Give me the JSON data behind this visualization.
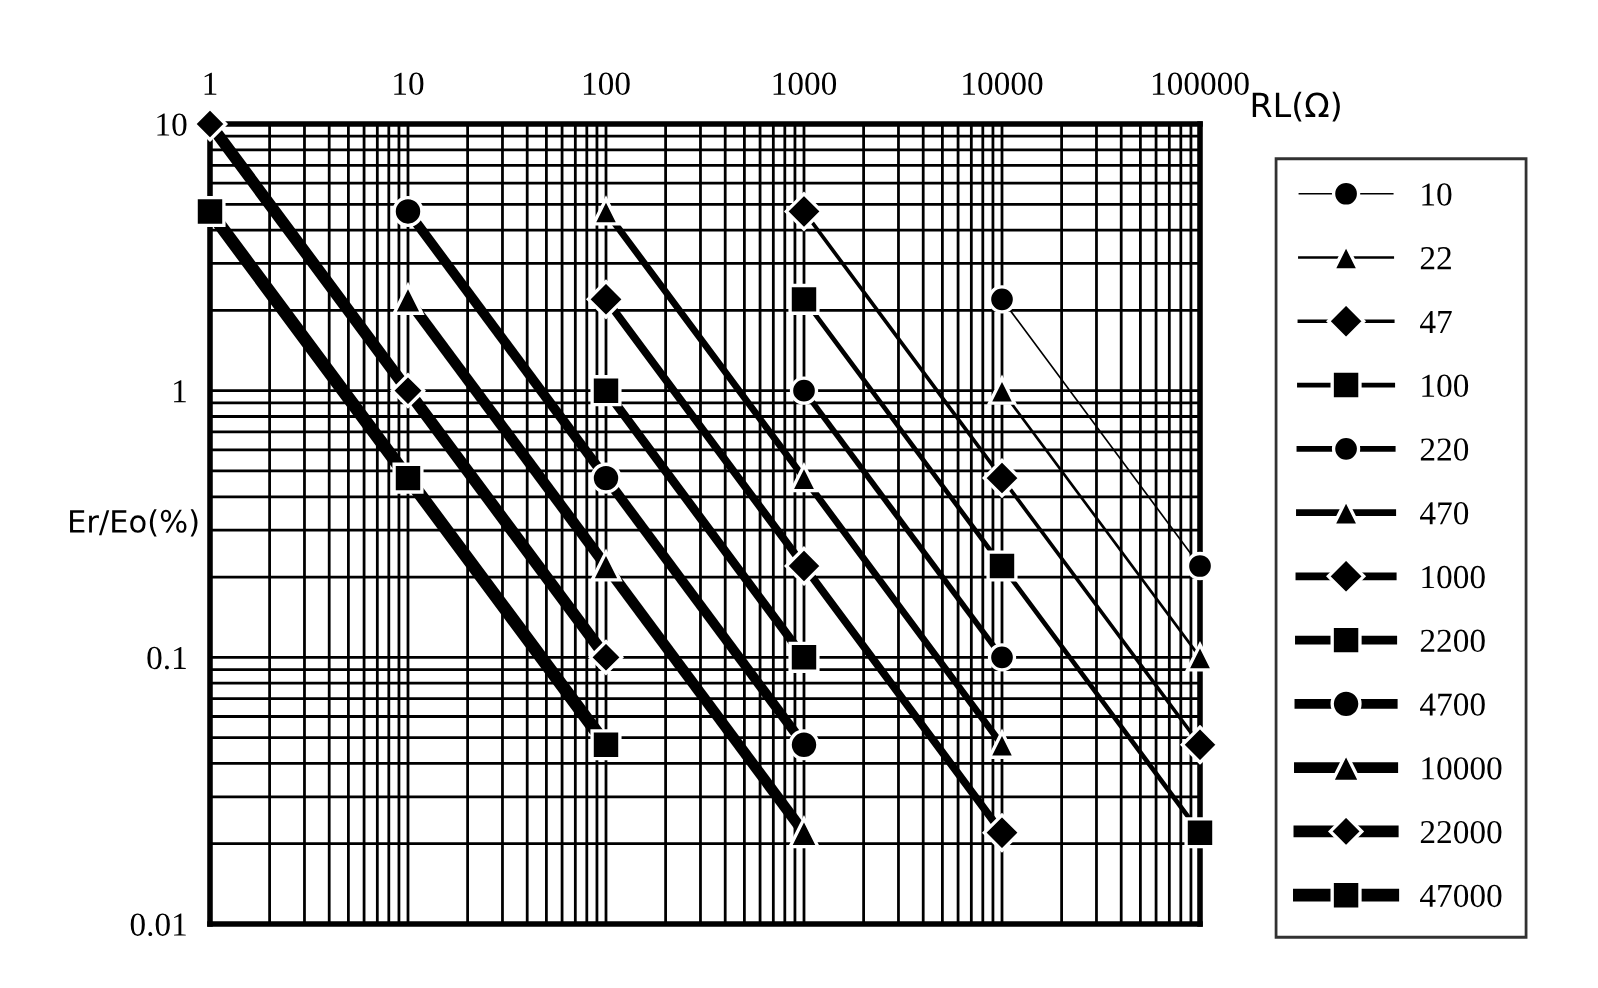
{
  "chart_data": {
    "type": "line",
    "xlabel": "RL(Ω)",
    "ylabel": "Er/Eo(%)",
    "log": "xy",
    "xlim": [
      1,
      100000
    ],
    "xticks": [
      1,
      10,
      100,
      1000,
      10000,
      100000
    ],
    "ylim": [
      0.01,
      10
    ],
    "yticks": [
      0.01,
      0.1,
      1,
      10
    ],
    "grid": true,
    "legend": "right",
    "series": [
      {
        "name": "10",
        "color": "#000000",
        "marker": "circle",
        "x": [
          10000,
          100000
        ],
        "values": [
          2.2,
          0.22
        ]
      },
      {
        "name": "22",
        "color": "#000000",
        "marker": "triangle",
        "x": [
          10000,
          100000
        ],
        "values": [
          1.0,
          0.1
        ]
      },
      {
        "name": "47",
        "color": "#000000",
        "marker": "diamond",
        "x": [
          1000,
          10000,
          100000
        ],
        "values": [
          4.7,
          0.47,
          0.047
        ]
      },
      {
        "name": "100",
        "color": "#000000",
        "marker": "square",
        "x": [
          1000,
          10000,
          100000
        ],
        "values": [
          2.2,
          0.22,
          0.022
        ]
      },
      {
        "name": "220",
        "color": "#000000",
        "marker": "circle",
        "x": [
          1000,
          10000
        ],
        "values": [
          1.0,
          0.1
        ]
      },
      {
        "name": "470",
        "color": "#000000",
        "marker": "triangle",
        "x": [
          100,
          1000,
          10000
        ],
        "values": [
          4.7,
          0.47,
          0.047
        ]
      },
      {
        "name": "1000",
        "color": "#000000",
        "marker": "diamond",
        "x": [
          100,
          1000,
          10000
        ],
        "values": [
          2.2,
          0.22,
          0.022
        ]
      },
      {
        "name": "2200",
        "color": "#000000",
        "marker": "square",
        "x": [
          100,
          1000
        ],
        "values": [
          1.0,
          0.1
        ]
      },
      {
        "name": "4700",
        "color": "#000000",
        "marker": "circle",
        "x": [
          10,
          100,
          1000
        ],
        "values": [
          4.7,
          0.47,
          0.047
        ]
      },
      {
        "name": "10000",
        "color": "#000000",
        "marker": "triangle",
        "x": [
          10,
          100,
          1000
        ],
        "values": [
          2.2,
          0.22,
          0.022
        ]
      },
      {
        "name": "22000",
        "color": "#000000",
        "marker": "diamond",
        "x": [
          1,
          10,
          100
        ],
        "values": [
          10,
          1.0,
          0.1
        ]
      },
      {
        "name": "47000",
        "color": "#000000",
        "marker": "square",
        "x": [
          1,
          10,
          100
        ],
        "values": [
          4.7,
          0.47,
          0.047
        ]
      }
    ]
  }
}
